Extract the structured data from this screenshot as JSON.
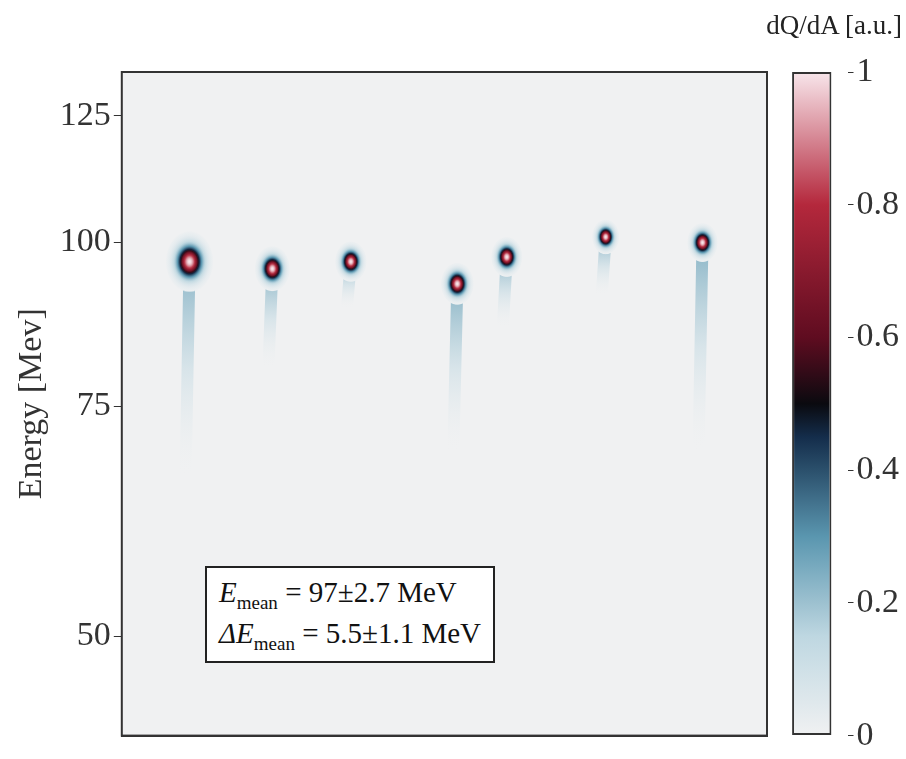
{
  "chart_data": {
    "type": "scatter",
    "ylabel": "Energy [Mev]",
    "x": [
      63,
      140,
      213,
      312,
      358,
      450,
      540
    ],
    "values": [
      96.7,
      95.5,
      96.7,
      93,
      97.5,
      101,
      100
    ],
    "spread": [
      7.5,
      5.5,
      5,
      5,
      5,
      4.5,
      5
    ],
    "tail_energy": [
      66,
      80,
      89,
      69,
      86,
      91,
      69
    ],
    "peak_intensity": [
      1,
      1,
      1,
      1,
      1,
      1,
      1
    ],
    "xlim": [
      0,
      600
    ],
    "ylim": [
      42,
      135
    ],
    "yticks": [
      50,
      75,
      100,
      125
    ],
    "log": "y",
    "grid": false,
    "tick_labels": "y",
    "colorbar": {
      "label": "dQ/dA [a.u.]",
      "range": [
        0,
        1
      ],
      "ticks": [
        0,
        0.2,
        0.4,
        0.6,
        0.8,
        1
      ]
    },
    "annotations": [
      {
        "symbol": "E",
        "subscript": "mean",
        "text": "= 97±2.7 MeV"
      },
      {
        "symbol": "ΔE",
        "subscript": "mean",
        "text": "= 5.5±1.1 MeV"
      }
    ]
  }
}
